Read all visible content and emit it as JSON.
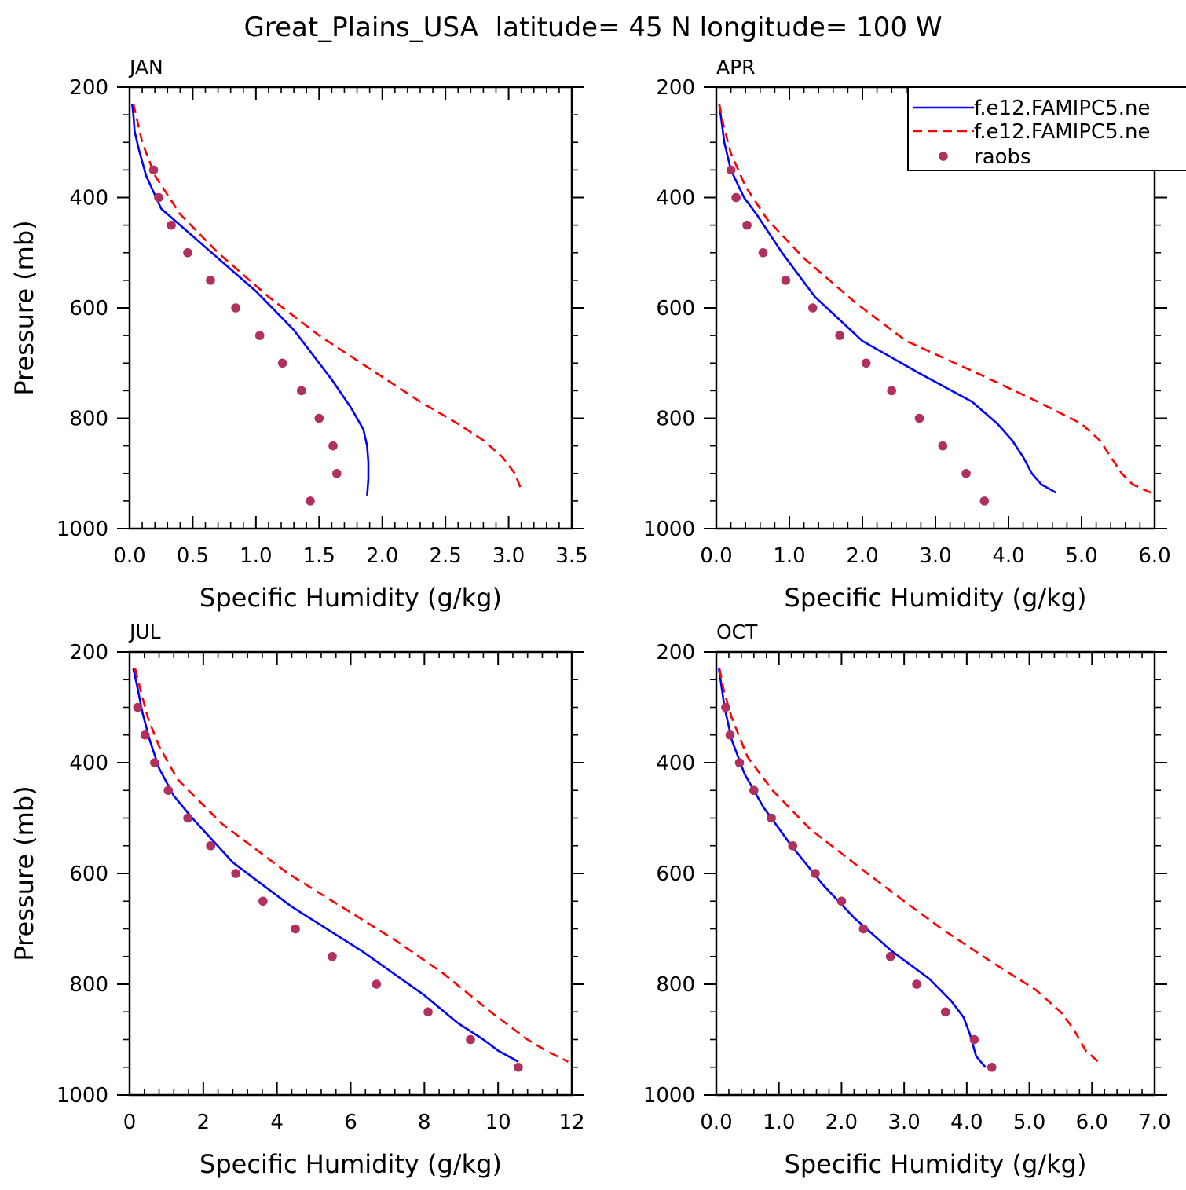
{
  "figure": {
    "title": "Great_Plains_USA  latitude= 45 N longitude= 100 W",
    "colors": {
      "model_1": "#0000ff",
      "model_2": "#ff0000",
      "raobs": "#b03060"
    }
  },
  "chart_data": [
    {
      "type": "line",
      "panel_label": "JAN",
      "xlabel": "Specific Humidity (g/kg)",
      "ylabel": "Pressure (mb)",
      "xlim": [
        0,
        3.5
      ],
      "ylim": [
        1000,
        200
      ],
      "y_inverted": true,
      "xticks": [
        "0.0",
        "0.5",
        "1.0",
        "1.5",
        "2.0",
        "2.5",
        "3.0",
        "3.5"
      ],
      "yticks": [
        "200",
        "400",
        "600",
        "800",
        "1000"
      ],
      "legend": null,
      "series": [
        {
          "name": "f.e12.FAMIPC5.ne",
          "style": "solid",
          "color": "#0000ff",
          "x": [
            0.02,
            0.03,
            0.04,
            0.07,
            0.13,
            0.25,
            0.4,
            0.65,
            1.0,
            1.3,
            1.6,
            1.75,
            1.85,
            1.88,
            1.89,
            1.89,
            1.88
          ],
          "y": [
            230,
            250,
            280,
            310,
            360,
            420,
            450,
            500,
            570,
            640,
            730,
            780,
            820,
            850,
            880,
            910,
            940
          ]
        },
        {
          "name": "f.e12.FAMIPC5.ne",
          "style": "dashed",
          "color": "#ff0000",
          "x": [
            0.03,
            0.06,
            0.1,
            0.2,
            0.4,
            0.7,
            1.1,
            1.5,
            1.9,
            2.3,
            2.6,
            2.8,
            2.95,
            3.05,
            3.1
          ],
          "y": [
            230,
            260,
            300,
            360,
            430,
            500,
            580,
            650,
            710,
            770,
            810,
            840,
            870,
            900,
            930
          ]
        },
        {
          "name": "raobs",
          "style": "markers",
          "color": "#b03060",
          "x": [
            0.19,
            0.23,
            0.33,
            0.46,
            0.64,
            0.84,
            1.03,
            1.21,
            1.36,
            1.5,
            1.61,
            1.64,
            1.43
          ],
          "y": [
            350,
            400,
            450,
            500,
            550,
            600,
            650,
            700,
            750,
            800,
            850,
            900,
            950
          ]
        }
      ]
    },
    {
      "type": "line",
      "panel_label": "APR",
      "xlabel": "Specific Humidity (g/kg)",
      "ylabel": "",
      "xlim": [
        0,
        6
      ],
      "ylim": [
        1000,
        200
      ],
      "y_inverted": true,
      "xticks": [
        "0.0",
        "1.0",
        "2.0",
        "3.0",
        "4.0",
        "5.0",
        "6.0"
      ],
      "yticks": [
        "200",
        "400",
        "600",
        "800",
        "1000"
      ],
      "legend": {
        "position": "top-right",
        "entries": [
          "f.e12.FAMIPC5.ne",
          "f.e12.FAMIPC5.ne",
          "raobs"
        ]
      },
      "series": [
        {
          "name": "f.e12.FAMIPC5.ne",
          "style": "solid",
          "color": "#0000ff",
          "x": [
            0.04,
            0.07,
            0.11,
            0.2,
            0.38,
            0.55,
            0.9,
            1.35,
            2.0,
            2.8,
            3.5,
            3.85,
            4.05,
            4.2,
            4.32,
            4.45,
            4.65
          ],
          "y": [
            230,
            260,
            300,
            350,
            400,
            430,
            500,
            580,
            660,
            720,
            770,
            810,
            840,
            870,
            900,
            920,
            935
          ]
        },
        {
          "name": "f.e12.FAMIPC5.ne",
          "style": "dashed",
          "color": "#ff0000",
          "x": [
            0.04,
            0.1,
            0.2,
            0.4,
            0.7,
            1.2,
            1.9,
            2.6,
            3.6,
            4.4,
            5.0,
            5.25,
            5.4,
            5.55,
            5.7,
            5.95
          ],
          "y": [
            230,
            270,
            320,
            380,
            440,
            510,
            590,
            660,
            720,
            770,
            810,
            840,
            870,
            900,
            920,
            935
          ]
        },
        {
          "name": "raobs",
          "style": "markers",
          "color": "#b03060",
          "x": [
            0.2,
            0.27,
            0.42,
            0.64,
            0.95,
            1.32,
            1.69,
            2.05,
            2.4,
            2.78,
            3.1,
            3.42,
            3.67
          ],
          "y": [
            350,
            400,
            450,
            500,
            550,
            600,
            650,
            700,
            750,
            800,
            850,
            900,
            950
          ]
        }
      ]
    },
    {
      "type": "line",
      "panel_label": "JUL",
      "xlabel": "Specific Humidity (g/kg)",
      "ylabel": "Pressure (mb)",
      "xlim": [
        0,
        12
      ],
      "ylim": [
        1000,
        200
      ],
      "y_inverted": true,
      "xticks": [
        "0",
        "2",
        "4",
        "6",
        "8",
        "10",
        "12"
      ],
      "yticks": [
        "200",
        "400",
        "600",
        "800",
        "1000"
      ],
      "legend": null,
      "series": [
        {
          "name": "f.e12.FAMIPC5.ne",
          "style": "solid",
          "color": "#0000ff",
          "x": [
            0.1,
            0.2,
            0.35,
            0.55,
            0.8,
            1.2,
            1.7,
            2.8,
            4.4,
            6.3,
            8.0,
            8.9,
            9.6,
            10.0,
            10.55
          ],
          "y": [
            230,
            260,
            310,
            360,
            410,
            460,
            500,
            580,
            660,
            740,
            820,
            870,
            900,
            920,
            940
          ]
        },
        {
          "name": "f.e12.FAMIPC5.ne",
          "style": "dashed",
          "color": "#ff0000",
          "x": [
            0.15,
            0.3,
            0.5,
            0.8,
            1.3,
            2.5,
            4.3,
            7.2,
            8.5,
            9.8,
            10.8,
            11.3,
            11.9
          ],
          "y": [
            230,
            270,
            320,
            370,
            430,
            510,
            600,
            720,
            780,
            850,
            900,
            920,
            940
          ]
        },
        {
          "name": "raobs",
          "style": "markers",
          "color": "#b03060",
          "x": [
            0.22,
            0.42,
            0.68,
            1.05,
            1.58,
            2.2,
            2.88,
            3.62,
            4.5,
            5.5,
            6.7,
            8.1,
            9.25,
            10.55
          ],
          "y": [
            300,
            350,
            400,
            450,
            500,
            550,
            600,
            650,
            700,
            750,
            800,
            850,
            900,
            950
          ]
        }
      ]
    },
    {
      "type": "line",
      "panel_label": "OCT",
      "xlabel": "Specific Humidity (g/kg)",
      "ylabel": "",
      "xlim": [
        0,
        7
      ],
      "ylim": [
        1000,
        200
      ],
      "y_inverted": true,
      "xticks": [
        "0.0",
        "1.0",
        "2.0",
        "3.0",
        "4.0",
        "5.0",
        "6.0",
        "7.0"
      ],
      "yticks": [
        "200",
        "400",
        "600",
        "800",
        "1000"
      ],
      "legend": null,
      "series": [
        {
          "name": "f.e12.FAMIPC5.ne",
          "style": "solid",
          "color": "#0000ff",
          "x": [
            0.04,
            0.08,
            0.13,
            0.25,
            0.45,
            0.75,
            1.2,
            1.7,
            2.2,
            2.8,
            3.4,
            3.75,
            3.95,
            4.05,
            4.1,
            4.15,
            4.3
          ],
          "y": [
            230,
            260,
            300,
            360,
            420,
            480,
            550,
            620,
            680,
            740,
            790,
            830,
            860,
            890,
            910,
            930,
            950
          ]
        },
        {
          "name": "f.e12.FAMIPC5.ne",
          "style": "dashed",
          "color": "#ff0000",
          "x": [
            0.05,
            0.12,
            0.25,
            0.5,
            0.9,
            1.5,
            2.3,
            3.0,
            3.6,
            4.4,
            5.1,
            5.5,
            5.7,
            5.9,
            6.1
          ],
          "y": [
            230,
            270,
            320,
            390,
            450,
            520,
            590,
            650,
            700,
            760,
            810,
            850,
            880,
            920,
            940
          ]
        },
        {
          "name": "raobs",
          "style": "markers",
          "color": "#b03060",
          "x": [
            0.15,
            0.22,
            0.37,
            0.6,
            0.88,
            1.22,
            1.58,
            2.0,
            2.35,
            2.78,
            3.2,
            3.66,
            4.12,
            4.4
          ],
          "y": [
            300,
            350,
            400,
            450,
            500,
            550,
            600,
            650,
            700,
            750,
            800,
            850,
            900,
            950
          ]
        }
      ]
    }
  ]
}
